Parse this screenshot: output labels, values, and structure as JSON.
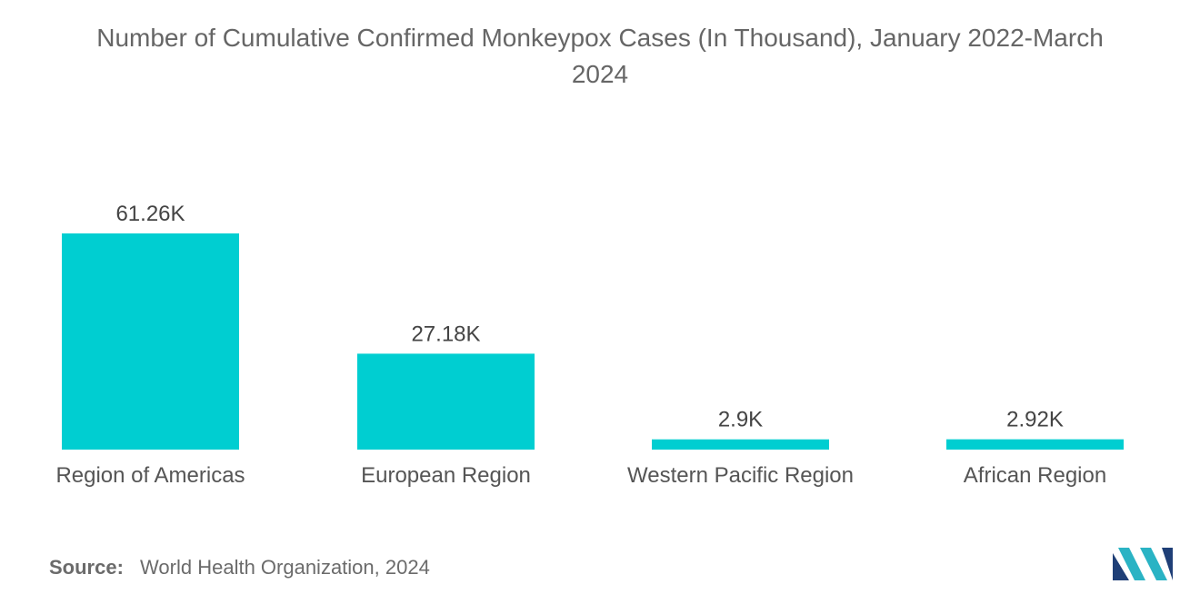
{
  "chart_data": {
    "type": "bar",
    "title_lines": [
      "Number of Cumulative Confirmed Monkeypox Cases (In Thousand), January 2022-March",
      "2024"
    ],
    "categories": [
      "Region of Americas",
      "European Region",
      "Western Pacific Region",
      "African Region"
    ],
    "values": [
      61.26,
      27.18,
      2.9,
      2.92
    ],
    "data_labels": [
      "61.26K",
      "27.18K",
      "2.9K",
      "2.92K"
    ],
    "bar_color": "#00CED1",
    "grid": false,
    "ylim": [
      0,
      61.26
    ]
  },
  "source": {
    "label": "Source:",
    "text": "World Health Organization, 2024"
  },
  "logo": {
    "icon": "mordor-intelligence-logo",
    "colors": [
      "#1f3f77",
      "#2ab3c4"
    ]
  }
}
